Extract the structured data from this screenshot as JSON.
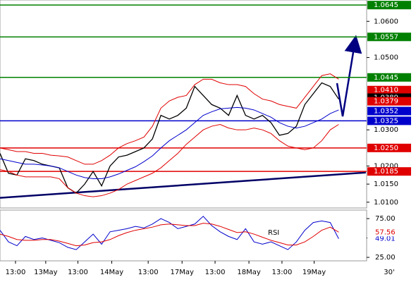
{
  "chart_data": {
    "type": "line",
    "x": [
      0,
      1,
      2,
      3,
      4,
      5,
      6,
      7,
      8,
      9,
      10,
      11,
      12,
      13,
      14,
      15,
      16,
      17,
      18,
      19,
      20,
      21,
      22,
      23,
      24,
      25,
      26,
      27,
      28,
      29,
      30,
      31,
      32,
      33,
      34,
      35,
      36,
      37,
      38,
      39,
      40
    ],
    "xlim": [
      0,
      43.3
    ],
    "ylim": [
      1.0084,
      1.0659
    ],
    "series": [
      {
        "color": "#000000",
        "values": [
          1.0235,
          1.018,
          1.0175,
          1.022,
          1.0215,
          1.0205,
          1.02,
          1.0195,
          1.014,
          1.0125,
          1.015,
          1.0185,
          1.0145,
          1.02,
          1.0225,
          1.023,
          1.024,
          1.025,
          1.0275,
          1.034,
          1.033,
          1.034,
          1.036,
          1.042,
          1.0395,
          1.037,
          1.036,
          1.034,
          1.0395,
          1.034,
          1.033,
          1.034,
          1.032,
          1.0285,
          1.029,
          1.031,
          1.037,
          1.04,
          1.043,
          1.042,
          1.0385
        ]
      },
      {
        "color": "#0000cc",
        "values": [
          1.022,
          1.0215,
          1.021,
          1.0205,
          1.0205,
          1.0203,
          1.02,
          1.0195,
          1.0185,
          1.0175,
          1.0168,
          1.0165,
          1.0165,
          1.017,
          1.0178,
          1.0188,
          1.0198,
          1.0212,
          1.0228,
          1.025,
          1.027,
          1.0285,
          1.03,
          1.032,
          1.034,
          1.035,
          1.0358,
          1.036,
          1.0362,
          1.036,
          1.0355,
          1.0345,
          1.0335,
          1.032,
          1.031,
          1.0305,
          1.031,
          1.032,
          1.033,
          1.0345,
          1.0355
        ]
      },
      {
        "color": "#e00000",
        "values": [
          1.025,
          1.0245,
          1.024,
          1.024,
          1.0235,
          1.0235,
          1.023,
          1.0228,
          1.0225,
          1.0215,
          1.0205,
          1.0205,
          1.0215,
          1.023,
          1.025,
          1.0262,
          1.027,
          1.028,
          1.031,
          1.036,
          1.038,
          1.039,
          1.0395,
          1.0425,
          1.044,
          1.044,
          1.043,
          1.0425,
          1.0425,
          1.042,
          1.04,
          1.0385,
          1.038,
          1.037,
          1.0365,
          1.036,
          1.039,
          1.042,
          1.045,
          1.0455,
          1.044
        ]
      },
      {
        "color": "#e00000",
        "values": [
          1.019,
          1.0185,
          1.0175,
          1.017,
          1.017,
          1.017,
          1.017,
          1.0165,
          1.014,
          1.0125,
          1.0118,
          1.0115,
          1.0118,
          1.0125,
          1.0135,
          1.015,
          1.016,
          1.017,
          1.018,
          1.0195,
          1.0215,
          1.0235,
          1.026,
          1.028,
          1.03,
          1.031,
          1.0315,
          1.0305,
          1.03,
          1.03,
          1.0305,
          1.03,
          1.029,
          1.027,
          1.0255,
          1.025,
          1.0245,
          1.025,
          1.027,
          1.03,
          1.0315
        ]
      }
    ],
    "yticks": [
      {
        "value": 1.06,
        "label": "1.0600"
      },
      {
        "value": 1.05,
        "label": "1.0500"
      },
      {
        "value": 1.03,
        "label": "1.0300"
      },
      {
        "value": 1.02,
        "label": "1.0200"
      },
      {
        "value": 1.015,
        "label": "1.0150"
      },
      {
        "value": 1.01,
        "label": "1.0100"
      }
    ],
    "levels": [
      {
        "value": 1.0645,
        "color": "#008000",
        "line": true
      },
      {
        "value": 1.0557,
        "color": "#008000",
        "line": true
      },
      {
        "value": 1.0445,
        "color": "#008000",
        "line": true
      },
      {
        "value": 1.041,
        "label": "1.0410",
        "color": "#e00000",
        "line": false
      },
      {
        "value": 1.0389,
        "color": "#000000",
        "line": false
      },
      {
        "value": 1.0379,
        "color": "#e00000",
        "line": false
      },
      {
        "value": 1.0352,
        "color": "#0000cc",
        "line": false
      },
      {
        "value": 1.0325,
        "color": "#0000cc",
        "line": true
      },
      {
        "value": 1.025,
        "label": "1.0250",
        "color": "#e00000",
        "line": true
      },
      {
        "value": 1.0185,
        "color": "#e00000",
        "line": true
      }
    ],
    "trendline": {
      "color": "#000066",
      "x": [
        0,
        43.2
      ],
      "values": [
        1.0112,
        1.0182
      ]
    },
    "xticks": [
      {
        "value": 1.83,
        "label": "13:00"
      },
      {
        "value": 5.4,
        "label": "13May"
      },
      {
        "value": 9.2,
        "label": "13:00"
      },
      {
        "value": 13.2,
        "label": "14May"
      },
      {
        "value": 17.5,
        "label": "13:00"
      },
      {
        "value": 21.5,
        "label": "17May"
      },
      {
        "value": 25.4,
        "label": "13:00"
      },
      {
        "value": 29.4,
        "label": "18May"
      },
      {
        "value": 33.3,
        "label": "13:00"
      },
      {
        "value": 37.1,
        "label": "19May"
      }
    ],
    "timeframe": "30'",
    "rsi": {
      "title": "RSI",
      "ylim": [
        20.5,
        86
      ],
      "yticks": [
        {
          "value": 75,
          "label": "75.00"
        },
        {
          "value": 50,
          "label": "50.00"
        },
        {
          "value": 25,
          "label": "25.00"
        }
      ],
      "series": [
        {
          "color": "#0000cc",
          "values": [
            60,
            45,
            40,
            52,
            48,
            50,
            47,
            44,
            38,
            35,
            45,
            55,
            42,
            58,
            60,
            62,
            65,
            63,
            68,
            75,
            70,
            62,
            65,
            68,
            78,
            66,
            58,
            52,
            48,
            62,
            45,
            42,
            45,
            40,
            35,
            45,
            60,
            70,
            72,
            70,
            49.01
          ]
        },
        {
          "color": "#e00000",
          "values": [
            55,
            52,
            48,
            47,
            47,
            48,
            48,
            46,
            43,
            40,
            41,
            44,
            45,
            48,
            53,
            57,
            60,
            62,
            64,
            67,
            68,
            67,
            66,
            66,
            69,
            68,
            65,
            61,
            57,
            58,
            55,
            51,
            47,
            44,
            41,
            41,
            45,
            52,
            60,
            64,
            57.56
          ]
        }
      ]
    }
  }
}
